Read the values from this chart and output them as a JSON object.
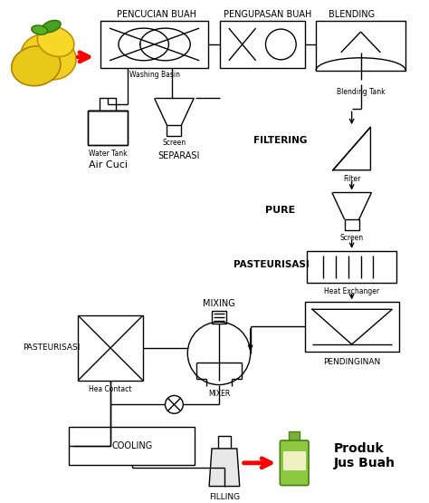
{
  "background_color": "#ffffff",
  "line_color": "#000000",
  "labels": {
    "pencucian": "PENCUCIAN BUAH",
    "pengupasan": "PENGUPASAN BUAH",
    "blending": "BLENDING",
    "washing_basin": "Washing Basin",
    "water_tank": "Water Tank",
    "air_cuci": "Air Cuci",
    "screen1": "Screen",
    "separasi": "SEPARASI",
    "blending_tank": "Blending Tank",
    "filtering": "FILTERING",
    "filter_lbl": "Filter",
    "pure": "PURE",
    "screen2": "Screen",
    "pasteurisasi1": "PASTEURISASI",
    "heat_exchanger": "Heat Exchanger",
    "pendinginan": "PENDINGINAN",
    "mixing": "MIXING",
    "mixer": "MIXER",
    "pasteurisasi2": "PASTEURISASI",
    "hea_contact": "Hea Contact",
    "cooling": "COOLING",
    "filling": "FILLING",
    "produk": "Produk\nJus Buah"
  }
}
